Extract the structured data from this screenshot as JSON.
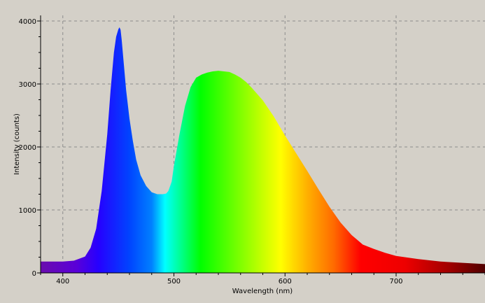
{
  "chart_data": {
    "type": "area",
    "title": "",
    "xlabel": "Wavelength (nm)",
    "ylabel": "Intensity (counts)",
    "xlim": [
      380,
      780
    ],
    "ylim": [
      0,
      4000
    ],
    "xticks": [
      400,
      500,
      600,
      700
    ],
    "yticks": [
      0,
      1000,
      2000,
      3000,
      4000
    ],
    "xtick_labels": [
      "400",
      "500",
      "600",
      "700"
    ],
    "ytick_labels": [
      "0",
      "1000",
      "2000",
      "3000",
      "4000"
    ],
    "grid": true,
    "fill": "visible-spectrum color gradient",
    "x": [
      380,
      400,
      410,
      420,
      425,
      430,
      435,
      440,
      443,
      446,
      448,
      450,
      451,
      452,
      453,
      455,
      457,
      460,
      463,
      466,
      470,
      475,
      480,
      485,
      490,
      493,
      495,
      498,
      500,
      505,
      510,
      515,
      520,
      525,
      530,
      535,
      540,
      545,
      550,
      555,
      560,
      565,
      570,
      575,
      580,
      590,
      600,
      610,
      620,
      630,
      640,
      650,
      660,
      670,
      680,
      690,
      700,
      720,
      740,
      760,
      780
    ],
    "y": [
      180,
      180,
      195,
      260,
      400,
      700,
      1300,
      2200,
      2900,
      3500,
      3750,
      3870,
      3900,
      3860,
      3700,
      3300,
      2900,
      2450,
      2100,
      1800,
      1550,
      1380,
      1280,
      1250,
      1250,
      1260,
      1300,
      1450,
      1700,
      2200,
      2650,
      2950,
      3100,
      3150,
      3180,
      3200,
      3210,
      3200,
      3190,
      3150,
      3100,
      3030,
      2940,
      2840,
      2740,
      2480,
      2180,
      1900,
      1620,
      1330,
      1050,
      800,
      600,
      450,
      380,
      320,
      270,
      220,
      180,
      160,
      140
    ]
  }
}
